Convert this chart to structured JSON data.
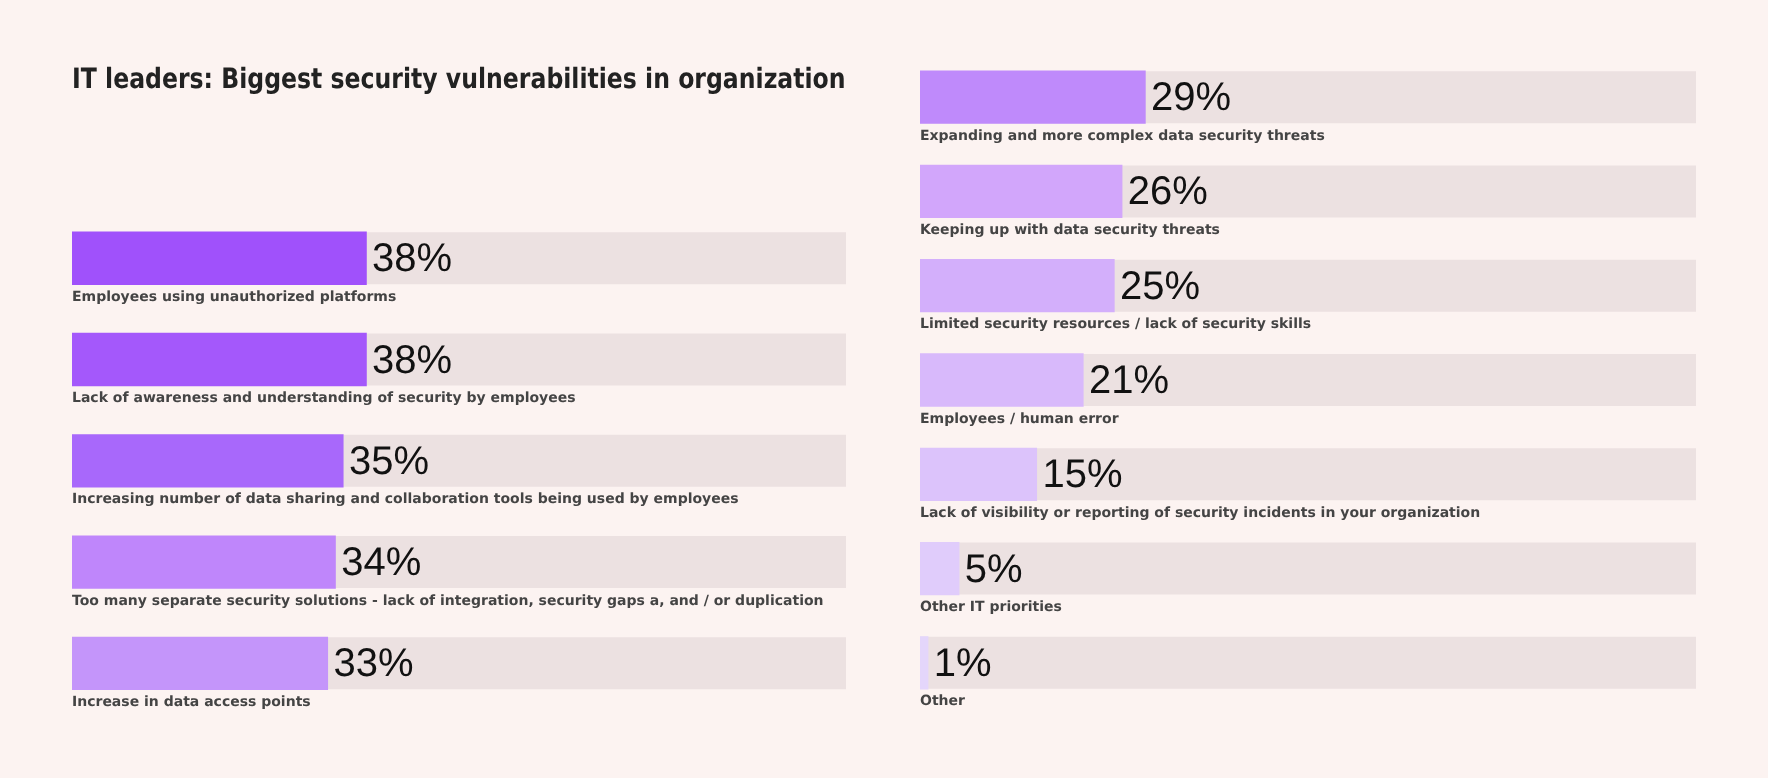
{
  "chart_data": [
    {
      "type": "bar",
      "orientation": "horizontal",
      "title": "IT leaders: Biggest security vulnerabilities in organization",
      "categories": [
        "Employees using unauthorized platforms",
        "Lack of awareness and understanding of security by employees",
        "Increasing number of data sharing and collaboration tools being used by employees",
        "Too many separate security solutions - lack of integration, security gaps a, and / or duplication",
        "Increase in data access points"
      ],
      "values": [
        38,
        38,
        35,
        34,
        33
      ],
      "colors": [
        "#a051fb",
        "#a458fb",
        "#a868fb",
        "#bf86fb",
        "#c495fa"
      ],
      "value_labels": [
        "38%",
        "38%",
        "35%",
        "34%",
        "33%"
      ],
      "xlim": [
        0,
        100
      ],
      "tick_labels": false
    },
    {
      "type": "bar",
      "orientation": "horizontal",
      "categories": [
        "Expanding and more complex data security threats",
        "Keeping up with data security threats",
        "Limited security resources / lack of security skills",
        "Employees / human error",
        "Lack of visibility or reporting of security incidents in your organization",
        "Other IT priorities",
        "Other"
      ],
      "values": [
        29,
        26,
        25,
        21,
        15,
        5,
        1
      ],
      "colors": [
        "#bf8afb",
        "#d2a6fb",
        "#d3affb",
        "#d8b9fb",
        "#dcc3fb",
        "#e0ccfb",
        "#e4d6fb"
      ],
      "value_labels": [
        "29%",
        "26%",
        "25%",
        "21%",
        "15%",
        "5%",
        "1%"
      ],
      "xlim": [
        0,
        100
      ],
      "tick_labels": false
    }
  ]
}
